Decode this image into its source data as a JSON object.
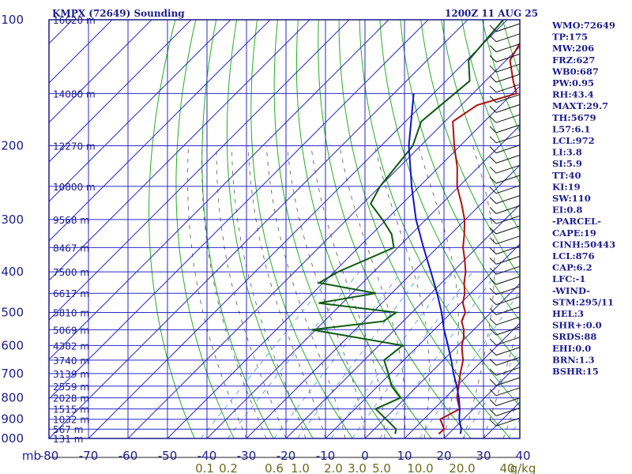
{
  "header": {
    "station": "KMPX (72649) Sounding",
    "valid_time": "1200Z 11 AUG 25"
  },
  "indices": [
    "WMO:72649",
    "TP:175",
    "MW:206",
    "FRZ:627",
    "WB0:687",
    "PW:0.95",
    "RH:43.4",
    "MAXT:29.7",
    "TH:5679",
    "L57:6.1",
    "LCL:972",
    "LI:3.8",
    "SI:5.9",
    "TT:40",
    "KI:19",
    "SW:110",
    "EI:0.8",
    "-PARCEL-",
    "CAPE:19",
    "CINH:50443",
    "LCL:876",
    "CAP:6.2",
    "LFC:-1",
    "-WIND-",
    "STM:295/11",
    "HEL:3",
    "SHR+:0.0",
    "SRDS:88",
    "EHI:0.0",
    "BRN:1.3",
    "BSHR:15"
  ],
  "colors": {
    "axes": "#1c1c8c",
    "isobars_isotherms": "#2a2ac8",
    "dry_adiabats": "#22b022",
    "moist_adiabats": "#555555",
    "mixing_ratio": "#5aa0e0",
    "temperature": "#b01010",
    "dewpoint": "#0d5a0d",
    "parcel": "#1414c0",
    "wind_barbs": "#111111"
  },
  "chart_data": {
    "type": "skew-t",
    "x_axis_unit_label": "mb",
    "pressure_ticks": [
      100,
      200,
      300,
      400,
      500,
      600,
      700,
      800,
      900,
      1000
    ],
    "pressure_range": [
      100,
      1000
    ],
    "temperature_ticks": [
      -80,
      -70,
      -60,
      -50,
      -40,
      -30,
      -20,
      -10,
      0,
      10,
      20,
      30,
      40
    ],
    "temperature_tick_labels": [
      "-80",
      "-70",
      "-60",
      "-50",
      "-40",
      "-30",
      "-20",
      "-10",
      "0",
      "10",
      "20",
      "30",
      "40"
    ],
    "mixing_ratio_labels": [
      "0.1",
      "0.2",
      "0.6",
      "1.0",
      "2.0",
      "3.0",
      "5.0",
      "10.0",
      "20.0",
      "40",
      "g/kg"
    ],
    "height_levels": [
      {
        "p": 100,
        "label": "16620 m"
      },
      {
        "p": 150,
        "label": "14080 m"
      },
      {
        "p": 200,
        "label": "12270 m"
      },
      {
        "p": 250,
        "label": "10800 m"
      },
      {
        "p": 300,
        "label": "9568 m"
      },
      {
        "p": 350,
        "label": "8467 m"
      },
      {
        "p": 400,
        "label": "7500 m"
      },
      {
        "p": 450,
        "label": "6617 m"
      },
      {
        "p": 500,
        "label": "5810 m"
      },
      {
        "p": 550,
        "label": "5069 m"
      },
      {
        "p": 600,
        "label": "4382 m"
      },
      {
        "p": 650,
        "label": "3740 m"
      },
      {
        "p": 700,
        "label": "3139 m"
      },
      {
        "p": 750,
        "label": "2559 m"
      },
      {
        "p": 800,
        "label": "2028 m"
      },
      {
        "p": 850,
        "label": "1515 m"
      },
      {
        "p": 900,
        "label": "1032 m"
      },
      {
        "p": 950,
        "label": "567 m"
      },
      {
        "p": 1000,
        "label": "131 m"
      }
    ],
    "series": [
      {
        "key": "temperature",
        "points": [
          [
            100,
            -62.0
          ],
          [
            110,
            -61.5
          ],
          [
            125,
            -59.0
          ],
          [
            140,
            -53.0
          ],
          [
            150,
            -49.0
          ],
          [
            160,
            -56.0
          ],
          [
            175,
            -58.0
          ],
          [
            200,
            -51.5
          ],
          [
            225,
            -45.3
          ],
          [
            250,
            -40.5
          ],
          [
            275,
            -35.0
          ],
          [
            300,
            -30.2
          ],
          [
            325,
            -26.6
          ],
          [
            350,
            -23.5
          ],
          [
            375,
            -19.9
          ],
          [
            400,
            -16.7
          ],
          [
            425,
            -14.3
          ],
          [
            450,
            -11.5
          ],
          [
            475,
            -9.5
          ],
          [
            500,
            -6.5
          ],
          [
            525,
            -5.2
          ],
          [
            550,
            -2.5
          ],
          [
            575,
            -0.5
          ],
          [
            600,
            1.0
          ],
          [
            625,
            3.0
          ],
          [
            650,
            5.0
          ],
          [
            700,
            7.7
          ],
          [
            750,
            10.5
          ],
          [
            800,
            13.0
          ],
          [
            850,
            16.5
          ],
          [
            900,
            14.2
          ],
          [
            950,
            17.7
          ],
          [
            975,
            17.5
          ]
        ]
      },
      {
        "key": "dewpoint",
        "points": [
          [
            100,
            -71.0
          ],
          [
            125,
            -69.5
          ],
          [
            140,
            -64.0
          ],
          [
            175,
            -66.0
          ],
          [
            200,
            -62.0
          ],
          [
            250,
            -60.0
          ],
          [
            275,
            -58.0
          ],
          [
            300,
            -51.0
          ],
          [
            325,
            -45.0
          ],
          [
            350,
            -41.0
          ],
          [
            400,
            -49.0
          ],
          [
            425,
            -51.0
          ],
          [
            450,
            -34.0
          ],
          [
            475,
            -46.0
          ],
          [
            500,
            -24.0
          ],
          [
            525,
            -25.0
          ],
          [
            550,
            -41.0
          ],
          [
            600,
            -14.0
          ],
          [
            650,
            -15.0
          ],
          [
            700,
            -10.5
          ],
          [
            750,
            -6.5
          ],
          [
            800,
            -1.3
          ],
          [
            850,
            -4.8
          ],
          [
            900,
            0.5
          ],
          [
            950,
            5.5
          ],
          [
            975,
            6.5
          ]
        ]
      },
      {
        "key": "parcel",
        "points": [
          [
            150,
            -75.0
          ],
          [
            200,
            -63.0
          ],
          [
            250,
            -52.0
          ],
          [
            300,
            -42.5
          ],
          [
            350,
            -33.5
          ],
          [
            400,
            -25.5
          ],
          [
            450,
            -18.5
          ],
          [
            500,
            -12.5
          ],
          [
            550,
            -7.5
          ],
          [
            600,
            -2.5
          ],
          [
            650,
            2.0
          ],
          [
            700,
            6.0
          ],
          [
            750,
            10.0
          ],
          [
            800,
            13.5
          ],
          [
            850,
            16.5
          ],
          [
            900,
            19.0
          ],
          [
            950,
            22.0
          ],
          [
            975,
            23.0
          ]
        ]
      }
    ]
  }
}
